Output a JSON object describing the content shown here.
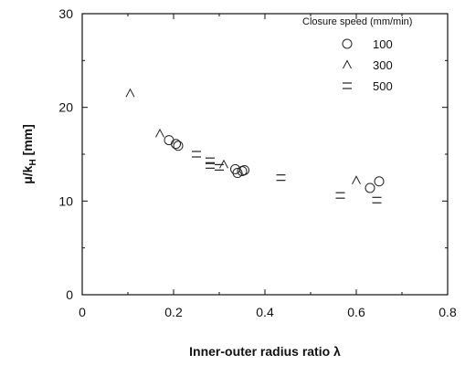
{
  "chart_data": {
    "type": "scatter",
    "xlabel": "Inner-outer  radius  ratio λ",
    "ylabel_main": "μ/k",
    "ylabel_sub": "H",
    "ylabel_unit": " [mm]",
    "xlim": [
      0,
      0.8
    ],
    "ylim": [
      0,
      30
    ],
    "x_ticks": [
      "0",
      "0.2",
      "0.4",
      "0.6",
      "0.8"
    ],
    "y_ticks": [
      "0",
      "10",
      "20",
      "30"
    ],
    "legend": {
      "title": "Closure speed (mm/min)",
      "placement": "top-right"
    },
    "series": [
      {
        "name": "100",
        "marker": "circle",
        "points": [
          {
            "x": 0.19,
            "y": 16.5
          },
          {
            "x": 0.205,
            "y": 16.1
          },
          {
            "x": 0.21,
            "y": 15.9
          },
          {
            "x": 0.335,
            "y": 13.4
          },
          {
            "x": 0.34,
            "y": 13.0
          },
          {
            "x": 0.35,
            "y": 13.2
          },
          {
            "x": 0.355,
            "y": 13.3
          },
          {
            "x": 0.63,
            "y": 11.4
          },
          {
            "x": 0.65,
            "y": 12.1
          }
        ]
      },
      {
        "name": "300",
        "marker": "triangle",
        "points": [
          {
            "x": 0.105,
            "y": 21.5
          },
          {
            "x": 0.17,
            "y": 17.2
          },
          {
            "x": 0.31,
            "y": 13.9
          },
          {
            "x": 0.6,
            "y": 12.2
          }
        ]
      },
      {
        "name": "500",
        "marker": "bar",
        "points": [
          {
            "x": 0.25,
            "y": 15.0
          },
          {
            "x": 0.28,
            "y": 14.3
          },
          {
            "x": 0.28,
            "y": 13.8
          },
          {
            "x": 0.3,
            "y": 13.6
          },
          {
            "x": 0.435,
            "y": 12.5
          },
          {
            "x": 0.565,
            "y": 10.6
          },
          {
            "x": 0.645,
            "y": 10.1
          }
        ]
      }
    ]
  }
}
